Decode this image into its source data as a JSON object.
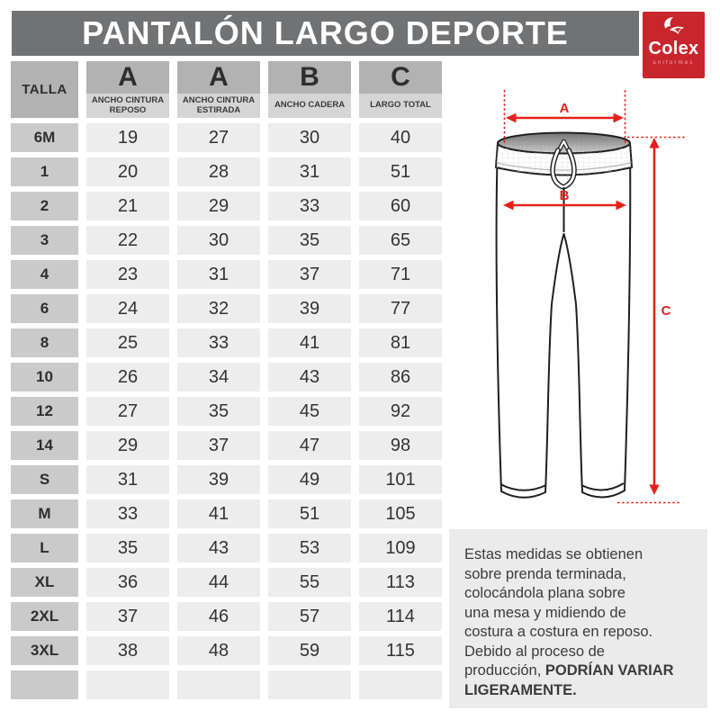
{
  "header": {
    "title": "PANTALÓN LARGO DEPORTE"
  },
  "logo": {
    "brand": "Colex",
    "tagline": "uniformes"
  },
  "table": {
    "size_header": "TALLA",
    "columns": [
      {
        "letter": "A",
        "desc": "ANCHO CINTURA REPOSO"
      },
      {
        "letter": "A",
        "desc": "ANCHO CINTURA ESTIRADA"
      },
      {
        "letter": "B",
        "desc": "ANCHO CADERA"
      },
      {
        "letter": "C",
        "desc": "LARGO TOTAL"
      }
    ],
    "rows": [
      {
        "size": "6M",
        "values": [
          "19",
          "27",
          "30",
          "40"
        ]
      },
      {
        "size": "1",
        "values": [
          "20",
          "28",
          "31",
          "51"
        ]
      },
      {
        "size": "2",
        "values": [
          "21",
          "29",
          "33",
          "60"
        ]
      },
      {
        "size": "3",
        "values": [
          "22",
          "30",
          "35",
          "65"
        ]
      },
      {
        "size": "4",
        "values": [
          "23",
          "31",
          "37",
          "71"
        ]
      },
      {
        "size": "6",
        "values": [
          "24",
          "32",
          "39",
          "77"
        ]
      },
      {
        "size": "8",
        "values": [
          "25",
          "33",
          "41",
          "81"
        ]
      },
      {
        "size": "10",
        "values": [
          "26",
          "34",
          "43",
          "86"
        ]
      },
      {
        "size": "12",
        "values": [
          "27",
          "35",
          "45",
          "92"
        ]
      },
      {
        "size": "14",
        "values": [
          "29",
          "37",
          "47",
          "98"
        ]
      },
      {
        "size": "S",
        "values": [
          "31",
          "39",
          "49",
          "101"
        ]
      },
      {
        "size": "M",
        "values": [
          "33",
          "41",
          "51",
          "105"
        ]
      },
      {
        "size": "L",
        "values": [
          "35",
          "43",
          "53",
          "109"
        ]
      },
      {
        "size": "XL",
        "values": [
          "36",
          "44",
          "55",
          "113"
        ]
      },
      {
        "size": "2XL",
        "values": [
          "37",
          "46",
          "57",
          "114"
        ]
      },
      {
        "size": "3XL",
        "values": [
          "38",
          "48",
          "59",
          "115"
        ]
      },
      {
        "size": "",
        "values": [
          "",
          "",
          "",
          ""
        ]
      }
    ]
  },
  "diagram": {
    "label_a": "A",
    "label_b": "B",
    "label_c": "C"
  },
  "note": {
    "lines": [
      "Estas medidas se obtienen",
      "sobre prenda terminada,",
      "colocándola plana sobre",
      "una mesa y midiendo de",
      "costura a costura en reposo.",
      "Debido al proceso de",
      "producción, "
    ],
    "bold": "PODRÍAN VARIAR LIGERAMENTE."
  },
  "colors": {
    "title_bar": "#717274",
    "logo_red": "#c9252d",
    "accent_red": "#e32119",
    "header_cell": "#b2b2b2",
    "desc_cell": "#d5d5d5",
    "size_cell": "#cacaca",
    "value_cell": "#ededed",
    "note_bg": "#ebebeb"
  },
  "chart_data": {
    "type": "table",
    "title": "PANTALÓN LARGO DEPORTE",
    "columns": [
      "TALLA",
      "A ANCHO CINTURA REPOSO",
      "A ANCHO CINTURA ESTIRADA",
      "B ANCHO CADERA",
      "C LARGO TOTAL"
    ],
    "rows": [
      [
        "6M",
        19,
        27,
        30,
        40
      ],
      [
        "1",
        20,
        28,
        31,
        51
      ],
      [
        "2",
        21,
        29,
        33,
        60
      ],
      [
        "3",
        22,
        30,
        35,
        65
      ],
      [
        "4",
        23,
        31,
        37,
        71
      ],
      [
        "6",
        24,
        32,
        39,
        77
      ],
      [
        "8",
        25,
        33,
        41,
        81
      ],
      [
        "10",
        26,
        34,
        43,
        86
      ],
      [
        "12",
        27,
        35,
        45,
        92
      ],
      [
        "14",
        29,
        37,
        47,
        98
      ],
      [
        "S",
        31,
        39,
        49,
        101
      ],
      [
        "M",
        33,
        41,
        51,
        105
      ],
      [
        "L",
        35,
        43,
        53,
        109
      ],
      [
        "XL",
        36,
        44,
        55,
        113
      ],
      [
        "2XL",
        37,
        46,
        57,
        114
      ],
      [
        "3XL",
        38,
        48,
        59,
        115
      ]
    ]
  }
}
